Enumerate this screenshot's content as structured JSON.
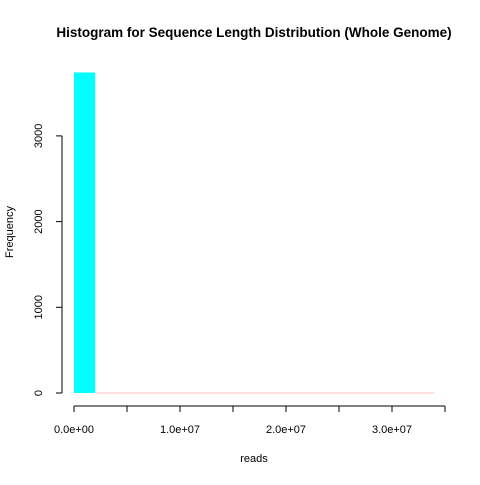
{
  "chart_data": {
    "type": "bar",
    "title": "Histogram for Sequence Length Distribution (Whole Genome)",
    "xlabel": "reads",
    "ylabel": "Frequency",
    "xlim": [
      0,
      35000000
    ],
    "ylim": [
      0,
      3750
    ],
    "x_ticks": [
      0,
      5000000,
      10000000,
      15000000,
      20000000,
      25000000,
      30000000,
      35000000
    ],
    "x_tick_labels": [
      "0.0e+00",
      "",
      "1.0e+07",
      "",
      "2.0e+07",
      "",
      "3.0e+07",
      ""
    ],
    "y_ticks": [
      0,
      1000,
      2000,
      3000
    ],
    "y_tick_labels": [
      "0",
      "1000",
      "2000",
      "3000"
    ],
    "bin_width": 2000000,
    "bins": [
      {
        "start": 0,
        "end": 2000000,
        "count": 3740
      },
      {
        "start": 2000000,
        "end": 34000000,
        "count": 0
      }
    ],
    "grid": false,
    "colors": {
      "bar_fill": "#00FFFF",
      "empty_bin_line": "#FFC0CB",
      "axis": "#000000"
    }
  }
}
